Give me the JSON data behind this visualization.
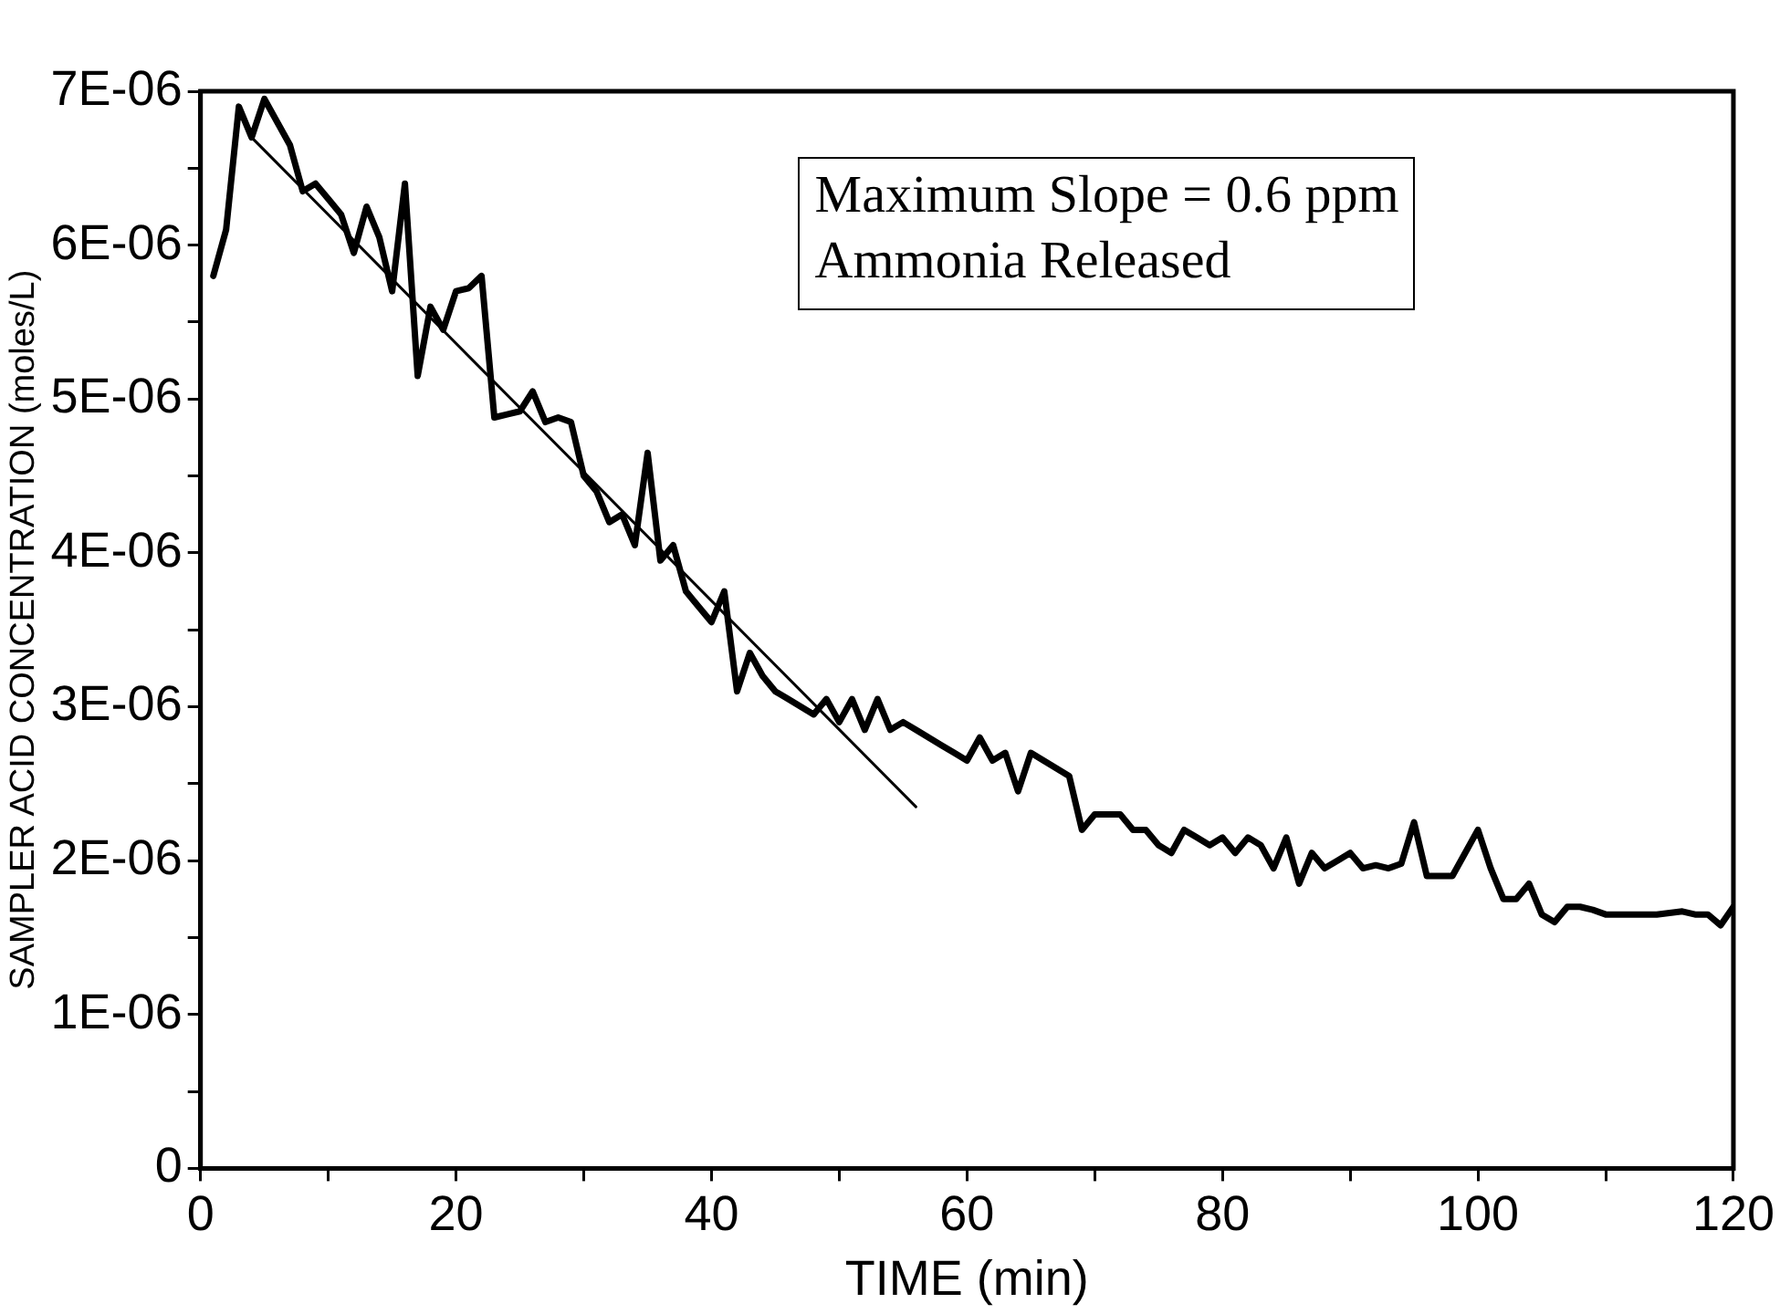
{
  "chart_data": {
    "type": "line",
    "xlabel": "TIME (min)",
    "ylabel": "SAMPLER ACID CONCENTRATION (moles/L)",
    "annotations": [
      "Maximum Slope = 0.6 ppm",
      "Ammonia Released"
    ],
    "xlim": [
      0,
      120
    ],
    "xticks": [
      0,
      {
        "value": 10,
        "label": null
      },
      20,
      {
        "value": 30,
        "label": null
      },
      40,
      {
        "value": 50,
        "label": null
      },
      60,
      {
        "value": 70,
        "label": null
      },
      80,
      {
        "value": 90,
        "label": null
      },
      100,
      {
        "value": 110,
        "label": null
      },
      120
    ],
    "ylim": [
      0,
      7e-06
    ],
    "yticks": [
      0,
      {
        "value": 5e-07,
        "label": null
      },
      {
        "value": 1e-06,
        "label": "1E-06"
      },
      {
        "value": 1.5e-06,
        "label": null
      },
      {
        "value": 2e-06,
        "label": "2E-06"
      },
      {
        "value": 2.5e-06,
        "label": null
      },
      {
        "value": 3e-06,
        "label": "3E-06"
      },
      {
        "value": 3.5e-06,
        "label": null
      },
      {
        "value": 4e-06,
        "label": "4E-06"
      },
      {
        "value": 4.5e-06,
        "label": null
      },
      {
        "value": 5e-06,
        "label": "5E-06"
      },
      {
        "value": 5.5e-06,
        "label": null
      },
      {
        "value": 6e-06,
        "label": "6E-06"
      },
      {
        "value": 6.5e-06,
        "label": null
      },
      {
        "value": 7e-06,
        "label": "7E-06"
      }
    ],
    "grid": false,
    "legend": false,
    "marker": "none",
    "line_style": "solid",
    "series": [
      {
        "color": "#000000",
        "x": [
          1,
          2,
          3,
          4,
          5,
          6,
          7,
          8,
          9,
          10,
          11,
          12,
          13,
          14,
          15,
          16,
          17,
          18,
          19,
          20,
          21,
          22,
          23,
          24,
          25,
          26,
          27,
          28,
          29,
          30,
          31,
          32,
          33,
          34,
          35,
          36,
          37,
          38,
          39,
          40,
          41,
          42,
          43,
          44,
          45,
          46,
          47,
          48,
          49,
          50,
          51,
          52,
          53,
          54,
          55,
          56,
          57,
          58,
          59,
          60,
          61,
          62,
          63,
          64,
          65,
          66,
          67,
          68,
          69,
          70,
          71,
          72,
          73,
          74,
          75,
          76,
          77,
          78,
          79,
          80,
          81,
          82,
          83,
          84,
          85,
          86,
          87,
          88,
          89,
          90,
          91,
          92,
          93,
          94,
          95,
          96,
          97,
          98,
          99,
          100,
          101,
          102,
          103,
          104,
          105,
          106,
          107,
          108,
          109,
          110,
          112,
          114,
          116,
          117,
          118,
          119,
          120
        ],
        "values": [
          5.8e-06,
          6.1e-06,
          6.9e-06,
          6.7e-06,
          6.95e-06,
          6.8e-06,
          6.65e-06,
          6.35e-06,
          6.4e-06,
          6.3e-06,
          6.2e-06,
          5.95e-06,
          6.25e-06,
          6.05e-06,
          5.7e-06,
          6.4e-06,
          5.15e-06,
          5.6e-06,
          5.45e-06,
          5.7e-06,
          5.72e-06,
          5.8e-06,
          4.88e-06,
          4.9e-06,
          4.92e-06,
          5.05e-06,
          4.85e-06,
          4.88e-06,
          4.85e-06,
          4.5e-06,
          4.4e-06,
          4.2e-06,
          4.25e-06,
          4.05e-06,
          4.65e-06,
          3.95e-06,
          4.05e-06,
          3.75e-06,
          3.65e-06,
          3.55e-06,
          3.75e-06,
          3.1e-06,
          3.35e-06,
          3.2e-06,
          3.1e-06,
          3.05e-06,
          3e-06,
          2.95e-06,
          3.05e-06,
          2.9e-06,
          3.05e-06,
          2.85e-06,
          3.05e-06,
          2.85e-06,
          2.9e-06,
          2.85e-06,
          2.8e-06,
          2.75e-06,
          2.7e-06,
          2.65e-06,
          2.8e-06,
          2.65e-06,
          2.7e-06,
          2.45e-06,
          2.7e-06,
          2.65e-06,
          2.6e-06,
          2.55e-06,
          2.2e-06,
          2.3e-06,
          2.3e-06,
          2.3e-06,
          2.2e-06,
          2.2e-06,
          2.1e-06,
          2.05e-06,
          2.2e-06,
          2.15e-06,
          2.1e-06,
          2.15e-06,
          2.05e-06,
          2.15e-06,
          2.1e-06,
          1.95e-06,
          2.15e-06,
          1.85e-06,
          2.05e-06,
          1.95e-06,
          2e-06,
          2.05e-06,
          1.95e-06,
          1.97e-06,
          1.95e-06,
          1.98e-06,
          2.25e-06,
          1.9e-06,
          1.9e-06,
          1.9e-06,
          2.05e-06,
          2.2e-06,
          1.95e-06,
          1.75e-06,
          1.75e-06,
          1.85e-06,
          1.65e-06,
          1.6e-06,
          1.7e-06,
          1.7e-06,
          1.68e-06,
          1.65e-06,
          1.65e-06,
          1.65e-06,
          1.67e-06,
          1.65e-06,
          1.65e-06,
          1.58e-06,
          1.7e-06
        ]
      },
      {
        "type": "line",
        "color": "#000000",
        "x": [
          4,
          56
        ],
        "values": [
          6.7e-06,
          2.35e-06
        ]
      }
    ]
  }
}
